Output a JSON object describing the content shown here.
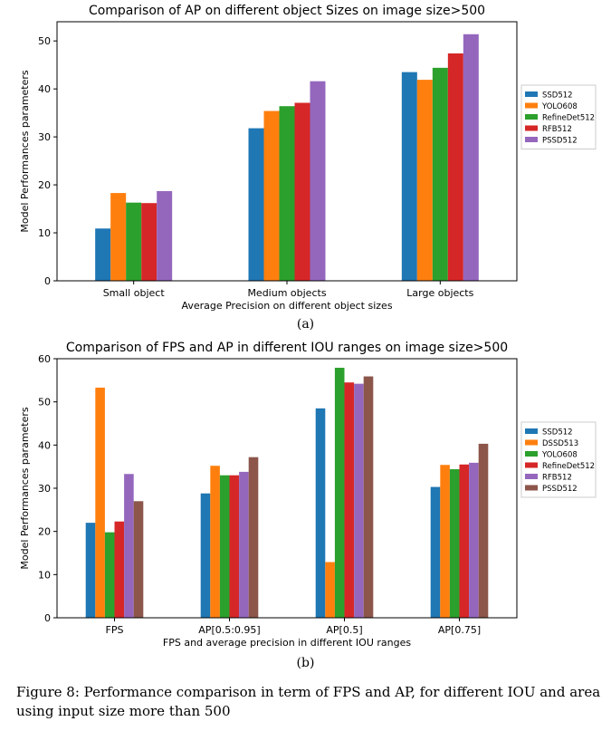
{
  "chart_data": [
    {
      "type": "bar",
      "title": "Comparison of AP on different object Sizes on image size>500",
      "xlabel": "Average Precision on different object sizes",
      "ylabel": "Model Performances parameters",
      "categories": [
        "Small object",
        "Medium objects",
        "Large objects"
      ],
      "ylim": [
        0,
        54
      ],
      "yticks": [
        0,
        10,
        20,
        30,
        40,
        50
      ],
      "grid": false,
      "legend_position": "right",
      "series": [
        {
          "name": "SSD512",
          "color": "#1f77b4",
          "values": [
            10.9,
            31.8,
            43.5
          ]
        },
        {
          "name": "YOLO608",
          "color": "#ff7f0e",
          "values": [
            18.3,
            35.4,
            41.9
          ]
        },
        {
          "name": "RefineDet512",
          "color": "#2ca02c",
          "values": [
            16.3,
            36.4,
            44.4
          ]
        },
        {
          "name": "RFB512",
          "color": "#d62728",
          "values": [
            16.2,
            37.1,
            47.4
          ]
        },
        {
          "name": "PSSD512",
          "color": "#9467bd",
          "values": [
            18.7,
            41.6,
            51.4
          ]
        }
      ]
    },
    {
      "type": "bar",
      "title": "Comparison of FPS and AP in different IOU ranges on image size>500",
      "xlabel": "FPS and average precision in different IOU ranges",
      "ylabel": "Model Performances parameters",
      "categories": [
        "FPS",
        "AP[0.5:0.95]",
        "AP[0.5]",
        "AP[0.75]"
      ],
      "ylim": [
        0,
        60
      ],
      "yticks": [
        0,
        10,
        20,
        30,
        40,
        50,
        60
      ],
      "grid": false,
      "legend_position": "right",
      "series": [
        {
          "name": "SSD512",
          "color": "#1f77b4",
          "values": [
            22.0,
            28.8,
            48.5,
            30.3
          ]
        },
        {
          "name": "DSSD513",
          "color": "#ff7f0e",
          "values": [
            53.3,
            35.2,
            12.9,
            35.4
          ]
        },
        {
          "name": "YOLO608",
          "color": "#2ca02c",
          "values": [
            19.8,
            33.0,
            57.9,
            34.4
          ]
        },
        {
          "name": "RefineDet512",
          "color": "#d62728",
          "values": [
            22.3,
            33.0,
            54.5,
            35.5
          ]
        },
        {
          "name": "RFB512",
          "color": "#9467bd",
          "values": [
            33.3,
            33.8,
            54.2,
            35.9
          ]
        },
        {
          "name": "PSSD512",
          "color": "#8c564b",
          "values": [
            27.0,
            37.2,
            55.9,
            40.3
          ]
        }
      ]
    }
  ],
  "subcaptions": [
    "(a)",
    "(b)"
  ],
  "figure_caption": "Figure 8: Performance comparison in term of FPS and AP, for different IOU and area using input size more than 500"
}
